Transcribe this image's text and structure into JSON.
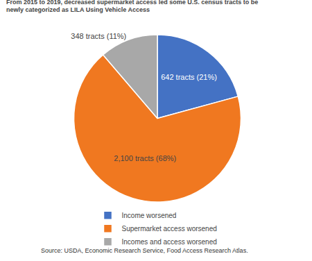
{
  "chart_data": {
    "type": "pie",
    "title": "From 2015 to 2019, decreased supermarket access led some U.S. census tracts to be",
    "subtitle": "newly categorized as LILA Using Vehicle Access",
    "categories": [
      "Income worsened",
      "Supermarket access worsened",
      "Incomes and access worsened"
    ],
    "values": [
      642,
      2100,
      348
    ],
    "value_labels": [
      "642 tracts (21%)",
      "2,100 tracts (68%)",
      "348 tracts (11%)"
    ],
    "colors": [
      "#4472C4",
      "#F07820",
      "#A8A8A8"
    ],
    "data_labels": true,
    "legend": "bottom",
    "annotations": [
      "Source: USDA, Economic Research Service, Food Access Research Atlas."
    ]
  }
}
